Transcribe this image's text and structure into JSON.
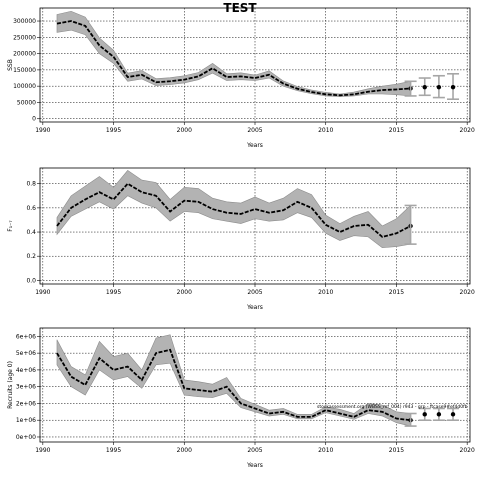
{
  "title": "TEST",
  "chart_data": [
    {
      "type": "line",
      "name": "ssb-panel",
      "xlabel": "Years",
      "ylabel": "SSB",
      "xlim": [
        1989.8,
        2020.2
      ],
      "ylim": [
        -10000,
        340000
      ],
      "xticks": [
        1990,
        1995,
        2000,
        2005,
        2010,
        2015,
        2020
      ],
      "yticks": [
        0,
        50000,
        100000,
        150000,
        200000,
        250000,
        300000
      ],
      "ytick_labels": [
        "0",
        "50000",
        "100000",
        "150000",
        "200000",
        "250000",
        "300000"
      ],
      "grid": true,
      "x": [
        1991,
        1992,
        1993,
        1994,
        1995,
        1996,
        1997,
        1998,
        1999,
        2000,
        2001,
        2002,
        2003,
        2004,
        2005,
        2006,
        2007,
        2008,
        2009,
        2010,
        2011,
        2012,
        2013,
        2014,
        2015,
        2016
      ],
      "estimate": [
        292000,
        300000,
        285000,
        225000,
        190000,
        128000,
        135000,
        112000,
        115000,
        120000,
        130000,
        155000,
        128000,
        130000,
        125000,
        135000,
        108000,
        92000,
        82000,
        75000,
        72000,
        75000,
        83000,
        88000,
        90000,
        93000
      ],
      "lower": [
        265000,
        272000,
        258000,
        200000,
        170000,
        115000,
        122000,
        102000,
        105000,
        110000,
        120000,
        140000,
        117000,
        120000,
        117000,
        125000,
        100000,
        86000,
        77000,
        70000,
        68000,
        70000,
        76000,
        76000,
        74000,
        70000
      ],
      "upper": [
        320000,
        330000,
        312000,
        248000,
        210000,
        140000,
        148000,
        123000,
        126000,
        132000,
        142000,
        170000,
        138000,
        141000,
        134000,
        147000,
        116000,
        99000,
        88000,
        81000,
        76000,
        82000,
        92000,
        100000,
        106000,
        115000
      ],
      "forecast": {
        "x": [
          2017,
          2018,
          2019
        ],
        "values": [
          97000,
          97000,
          97000
        ],
        "lower": [
          72000,
          65000,
          60000
        ],
        "upper": [
          125000,
          132000,
          138000
        ]
      },
      "annotation": ""
    },
    {
      "type": "line",
      "name": "f-panel",
      "xlabel": "Years",
      "ylabel": "F₁₋₇",
      "xlim": [
        1989.8,
        2020.2
      ],
      "ylim": [
        -0.03,
        0.93
      ],
      "xticks": [
        1990,
        1995,
        2000,
        2005,
        2010,
        2015,
        2020
      ],
      "yticks": [
        0.0,
        0.2,
        0.4,
        0.6,
        0.8
      ],
      "ytick_labels": [
        "0.0",
        "0.2",
        "0.4",
        "0.6",
        "0.8"
      ],
      "grid": true,
      "x": [
        1991,
        1992,
        1993,
        1994,
        1995,
        1996,
        1997,
        1998,
        1999,
        2000,
        2001,
        2002,
        2003,
        2004,
        2005,
        2006,
        2007,
        2008,
        2009,
        2010,
        2011,
        2012,
        2013,
        2014,
        2015,
        2016
      ],
      "estimate": [
        0.45,
        0.6,
        0.67,
        0.73,
        0.67,
        0.8,
        0.73,
        0.7,
        0.57,
        0.66,
        0.65,
        0.59,
        0.56,
        0.55,
        0.59,
        0.56,
        0.58,
        0.65,
        0.6,
        0.46,
        0.4,
        0.45,
        0.46,
        0.36,
        0.39,
        0.45
      ],
      "lower": [
        0.38,
        0.53,
        0.59,
        0.65,
        0.59,
        0.7,
        0.64,
        0.6,
        0.49,
        0.57,
        0.56,
        0.51,
        0.49,
        0.47,
        0.51,
        0.49,
        0.5,
        0.56,
        0.52,
        0.39,
        0.33,
        0.37,
        0.36,
        0.27,
        0.28,
        0.3
      ],
      "upper": [
        0.52,
        0.7,
        0.78,
        0.86,
        0.77,
        0.91,
        0.83,
        0.81,
        0.67,
        0.77,
        0.76,
        0.68,
        0.65,
        0.64,
        0.69,
        0.64,
        0.68,
        0.76,
        0.71,
        0.54,
        0.47,
        0.53,
        0.57,
        0.45,
        0.51,
        0.62
      ]
    },
    {
      "type": "line",
      "name": "recruit-panel",
      "xlabel": "Years",
      "ylabel": "Recruits (age 0)",
      "xlim": [
        1989.8,
        2020.2
      ],
      "ylim": [
        -300000,
        6500000
      ],
      "xticks": [
        1990,
        1995,
        2000,
        2005,
        2010,
        2015,
        2020
      ],
      "yticks": [
        0,
        1000000,
        2000000,
        3000000,
        4000000,
        5000000,
        6000000
      ],
      "ytick_labels": [
        "0e+00",
        "1e+06",
        "2e+06",
        "3e+06",
        "4e+06",
        "5e+06",
        "6e+06"
      ],
      "grid": true,
      "x": [
        1991,
        1992,
        1993,
        1994,
        1995,
        1996,
        1997,
        1998,
        1999,
        2000,
        2001,
        2002,
        2003,
        2004,
        2005,
        2006,
        2007,
        2008,
        2009,
        2010,
        2011,
        2012,
        2013,
        2014,
        2015,
        2016
      ],
      "estimate": [
        5000000,
        3600000,
        3100000,
        4700000,
        4000000,
        4200000,
        3400000,
        5000000,
        5200000,
        2900000,
        2800000,
        2700000,
        3000000,
        2000000,
        1700000,
        1400000,
        1500000,
        1200000,
        1200000,
        1600000,
        1400000,
        1200000,
        1600000,
        1500000,
        1100000,
        1000000
      ],
      "lower": [
        4300000,
        3000000,
        2500000,
        4000000,
        3400000,
        3600000,
        2900000,
        4300000,
        4400000,
        2500000,
        2400000,
        2350000,
        2600000,
        1750000,
        1500000,
        1250000,
        1350000,
        1080000,
        1080000,
        1450000,
        1250000,
        1050000,
        1400000,
        1250000,
        850000,
        650000
      ],
      "upper": [
        5800000,
        4200000,
        3700000,
        5700000,
        4800000,
        5000000,
        4000000,
        5900000,
        6100000,
        3400000,
        3300000,
        3150000,
        3550000,
        2300000,
        1950000,
        1600000,
        1700000,
        1350000,
        1350000,
        1800000,
        1650000,
        1400000,
        2000000,
        1900000,
        1500000,
        1400000
      ],
      "forecast": {
        "x": [
          2017,
          2018,
          2019
        ],
        "values": [
          1350000,
          1350000,
          1350000
        ],
        "lower": [
          1000000,
          1000000,
          1000000
        ],
        "upper": [
          1700000,
          1700000,
          1700000
        ]
      },
      "annotation": "stockassessment.org (WBSS_mf_004) r943 - grp - ftcase9#ef4d0fb"
    }
  ]
}
